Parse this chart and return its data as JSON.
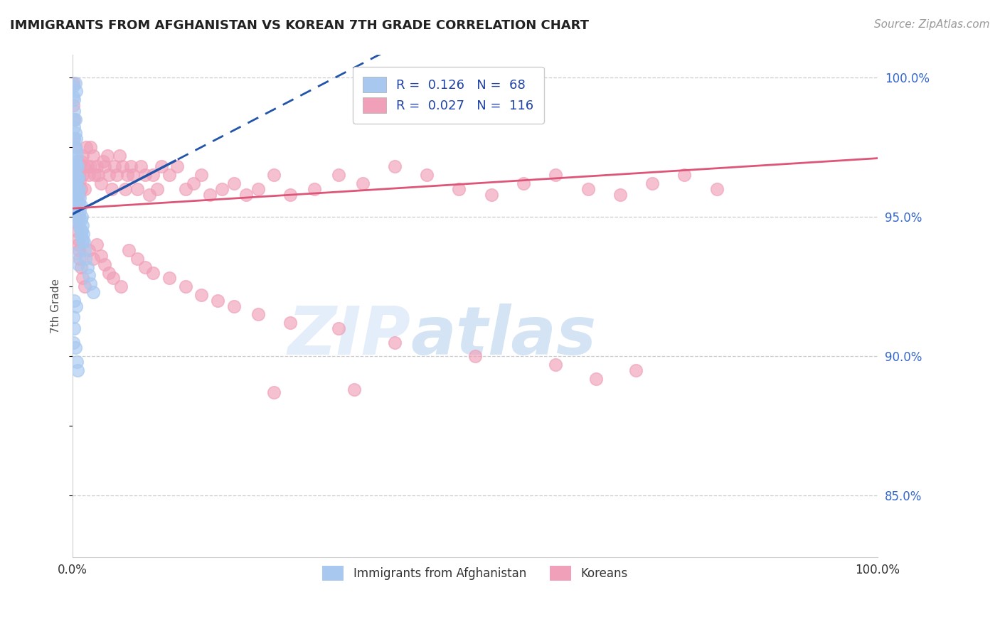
{
  "title": "IMMIGRANTS FROM AFGHANISTAN VS KOREAN 7TH GRADE CORRELATION CHART",
  "source": "Source: ZipAtlas.com",
  "ylabel": "7th Grade",
  "legend_r1": "R =  0.126",
  "legend_n1": "N =  68",
  "legend_r2": "R =  0.027",
  "legend_n2": "N =  116",
  "afghanistan_color": "#a8c8f0",
  "korean_color": "#f0a0b8",
  "trend_afghanistan_color": "#2255aa",
  "trend_korean_color": "#dd5577",
  "xmin": 0.0,
  "xmax": 1.0,
  "ymin": 0.828,
  "ymax": 1.008,
  "yticks": [
    0.85,
    0.9,
    0.95,
    1.0
  ],
  "ytick_labels": [
    "85.0%",
    "90.0%",
    "95.0%",
    "100.0%"
  ],
  "afghanistan_x": [
    0.001,
    0.001,
    0.001,
    0.002,
    0.002,
    0.002,
    0.002,
    0.003,
    0.003,
    0.003,
    0.003,
    0.003,
    0.004,
    0.004,
    0.004,
    0.004,
    0.004,
    0.005,
    0.005,
    0.005,
    0.005,
    0.006,
    0.006,
    0.006,
    0.006,
    0.007,
    0.007,
    0.007,
    0.007,
    0.008,
    0.008,
    0.008,
    0.009,
    0.009,
    0.009,
    0.01,
    0.01,
    0.01,
    0.011,
    0.011,
    0.012,
    0.012,
    0.013,
    0.014,
    0.015,
    0.016,
    0.018,
    0.02,
    0.022,
    0.025,
    0.003,
    0.004,
    0.001,
    0.002,
    0.001,
    0.003,
    0.01,
    0.012,
    0.005,
    0.007,
    0.002,
    0.004,
    0.001,
    0.002,
    0.001,
    0.003,
    0.005,
    0.006
  ],
  "afghanistan_y": [
    0.997,
    0.993,
    0.985,
    0.992,
    0.988,
    0.982,
    0.978,
    0.985,
    0.98,
    0.975,
    0.97,
    0.965,
    0.978,
    0.974,
    0.969,
    0.964,
    0.958,
    0.972,
    0.968,
    0.963,
    0.957,
    0.968,
    0.964,
    0.959,
    0.953,
    0.964,
    0.96,
    0.955,
    0.948,
    0.96,
    0.955,
    0.95,
    0.957,
    0.952,
    0.946,
    0.954,
    0.949,
    0.943,
    0.95,
    0.945,
    0.947,
    0.942,
    0.944,
    0.941,
    0.938,
    0.935,
    0.932,
    0.929,
    0.926,
    0.923,
    0.998,
    0.995,
    0.96,
    0.958,
    0.953,
    0.949,
    0.945,
    0.941,
    0.937,
    0.933,
    0.92,
    0.918,
    0.914,
    0.91,
    0.905,
    0.903,
    0.898,
    0.895
  ],
  "korean_x": [
    0.001,
    0.001,
    0.002,
    0.002,
    0.003,
    0.003,
    0.004,
    0.004,
    0.005,
    0.005,
    0.006,
    0.006,
    0.007,
    0.007,
    0.008,
    0.008,
    0.009,
    0.01,
    0.01,
    0.012,
    0.012,
    0.014,
    0.015,
    0.017,
    0.018,
    0.02,
    0.022,
    0.022,
    0.025,
    0.027,
    0.03,
    0.032,
    0.035,
    0.038,
    0.04,
    0.043,
    0.045,
    0.048,
    0.052,
    0.055,
    0.058,
    0.062,
    0.065,
    0.068,
    0.072,
    0.075,
    0.08,
    0.085,
    0.09,
    0.095,
    0.1,
    0.105,
    0.11,
    0.12,
    0.13,
    0.14,
    0.15,
    0.16,
    0.17,
    0.185,
    0.2,
    0.215,
    0.23,
    0.25,
    0.27,
    0.3,
    0.33,
    0.36,
    0.4,
    0.44,
    0.48,
    0.52,
    0.56,
    0.6,
    0.64,
    0.68,
    0.72,
    0.76,
    0.8,
    0.003,
    0.004,
    0.005,
    0.006,
    0.007,
    0.008,
    0.009,
    0.01,
    0.012,
    0.015,
    0.02,
    0.025,
    0.03,
    0.035,
    0.04,
    0.045,
    0.05,
    0.06,
    0.07,
    0.08,
    0.09,
    0.1,
    0.12,
    0.14,
    0.16,
    0.18,
    0.2,
    0.23,
    0.27,
    0.33,
    0.4,
    0.5,
    0.6,
    0.7,
    0.65,
    0.35,
    0.25
  ],
  "korean_y": [
    0.998,
    0.99,
    0.985,
    0.978,
    0.975,
    0.968,
    0.965,
    0.96,
    0.958,
    0.952,
    0.97,
    0.963,
    0.968,
    0.96,
    0.965,
    0.958,
    0.963,
    0.97,
    0.96,
    0.972,
    0.965,
    0.968,
    0.96,
    0.975,
    0.968,
    0.965,
    0.975,
    0.968,
    0.972,
    0.965,
    0.968,
    0.965,
    0.962,
    0.97,
    0.968,
    0.972,
    0.965,
    0.96,
    0.968,
    0.965,
    0.972,
    0.968,
    0.96,
    0.965,
    0.968,
    0.965,
    0.96,
    0.968,
    0.965,
    0.958,
    0.965,
    0.96,
    0.968,
    0.965,
    0.968,
    0.96,
    0.962,
    0.965,
    0.958,
    0.96,
    0.962,
    0.958,
    0.96,
    0.965,
    0.958,
    0.96,
    0.965,
    0.962,
    0.968,
    0.965,
    0.96,
    0.958,
    0.962,
    0.965,
    0.96,
    0.958,
    0.962,
    0.965,
    0.96,
    0.95,
    0.948,
    0.945,
    0.942,
    0.94,
    0.938,
    0.935,
    0.932,
    0.928,
    0.925,
    0.938,
    0.935,
    0.94,
    0.936,
    0.933,
    0.93,
    0.928,
    0.925,
    0.938,
    0.935,
    0.932,
    0.93,
    0.928,
    0.925,
    0.922,
    0.92,
    0.918,
    0.915,
    0.912,
    0.91,
    0.905,
    0.9,
    0.897,
    0.895,
    0.892,
    0.888,
    0.887
  ],
  "watermark_zip": "ZIP",
  "watermark_atlas": "atlas"
}
